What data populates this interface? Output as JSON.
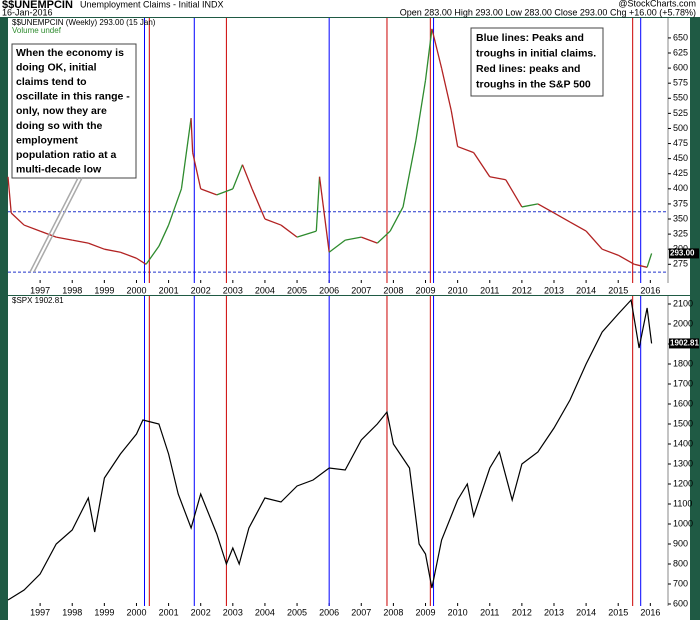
{
  "header": {
    "symbol": "$$UNEMPCIN",
    "name": "Unemployment Claims - Initial INDX",
    "date": "16-Jan-2016",
    "ohlc": "Open 283.00 High 293.00 Low 283.00 Close 293.00 Chg +16.00 (+5.78%)",
    "source": "@StockCharts.com"
  },
  "annotations": {
    "left": [
      "When the economy is",
      "doing OK, initial",
      "claims tend to",
      "oscillate in this range -",
      "only, now they are",
      "doing so with the",
      "employment",
      "population ratio at a",
      "multi-decade low"
    ],
    "right": [
      "Blue lines: Peaks and",
      "troughs in initial claims.",
      "Red lines: peaks and",
      "troughs in the S&P 500"
    ]
  },
  "chart_data": [
    {
      "type": "line",
      "legend": "$$UNEMPCIN (Weekly) 293.00 (15 Jan)",
      "volume": "Volume undef",
      "x": [
        1996.0,
        1996.1,
        1996.5,
        1997.0,
        1997.5,
        1998.0,
        1998.5,
        1999.0,
        1999.5,
        2000.0,
        2000.3,
        2000.7,
        2001.0,
        2001.4,
        2001.7,
        2001.75,
        2002.0,
        2002.5,
        2003.0,
        2003.3,
        2003.6,
        2004.0,
        2004.5,
        2005.0,
        2005.6,
        2005.7,
        2006.0,
        2006.5,
        2007.0,
        2007.5,
        2007.9,
        2008.3,
        2008.7,
        2009.0,
        2009.2,
        2009.5,
        2009.8,
        2010.0,
        2010.5,
        2011.0,
        2011.5,
        2012.0,
        2012.5,
        2013.0,
        2013.5,
        2014.0,
        2014.5,
        2015.0,
        2015.5,
        2015.9,
        2016.04
      ],
      "values": [
        420,
        360,
        340,
        330,
        320,
        315,
        310,
        300,
        295,
        285,
        275,
        305,
        340,
        400,
        517,
        460,
        400,
        390,
        400,
        440,
        400,
        350,
        340,
        320,
        330,
        420,
        295,
        315,
        320,
        310,
        330,
        370,
        480,
        580,
        665,
        600,
        530,
        470,
        460,
        420,
        415,
        370,
        375,
        360,
        345,
        330,
        300,
        290,
        275,
        270,
        293
      ],
      "last_value_label": "293.00",
      "up_color": "#2e8b2e",
      "down_color": "#b22222",
      "hlines": [
        362,
        262
      ],
      "xlim": [
        1996.0,
        2016.55
      ],
      "ylim": [
        244,
        683
      ],
      "xticks": [
        1997,
        1998,
        1999,
        2000,
        2001,
        2002,
        2003,
        2004,
        2005,
        2006,
        2007,
        2008,
        2009,
        2010,
        2011,
        2012,
        2013,
        2014,
        2015,
        2016
      ],
      "yticks": [
        275,
        300,
        325,
        350,
        375,
        400,
        425,
        450,
        475,
        500,
        525,
        550,
        575,
        600,
        625,
        650
      ],
      "markers": [
        {
          "x": 2000.25,
          "color": "#0000ff"
        },
        {
          "x": 2000.4,
          "color": "#cc0000"
        },
        {
          "x": 2001.8,
          "color": "#0000ff"
        },
        {
          "x": 2002.8,
          "color": "#cc0000"
        },
        {
          "x": 2006.0,
          "color": "#0000ff"
        },
        {
          "x": 2007.8,
          "color": "#cc0000"
        },
        {
          "x": 2009.15,
          "color": "#cc0000"
        },
        {
          "x": 2009.25,
          "color": "#0000ff"
        },
        {
          "x": 2015.45,
          "color": "#cc0000"
        },
        {
          "x": 2015.7,
          "color": "#0000ff"
        }
      ]
    },
    {
      "type": "line",
      "legend": "$SPX 1902.81",
      "color": "#000000",
      "x": [
        1996.0,
        1996.5,
        1997.0,
        1997.5,
        1998.0,
        1998.5,
        1998.7,
        1999.0,
        1999.5,
        2000.0,
        2000.2,
        2000.7,
        2001.0,
        2001.3,
        2001.7,
        2002.0,
        2002.5,
        2002.8,
        2003.0,
        2003.2,
        2003.5,
        2004.0,
        2004.5,
        2005.0,
        2005.5,
        2006.0,
        2006.5,
        2007.0,
        2007.5,
        2007.8,
        2008.0,
        2008.5,
        2008.8,
        2009.0,
        2009.2,
        2009.5,
        2010.0,
        2010.3,
        2010.5,
        2011.0,
        2011.3,
        2011.7,
        2012.0,
        2012.5,
        2013.0,
        2013.5,
        2014.0,
        2014.5,
        2015.0,
        2015.4,
        2015.65,
        2015.9,
        2016.04
      ],
      "values": [
        620,
        670,
        750,
        900,
        970,
        1130,
        960,
        1230,
        1350,
        1450,
        1520,
        1500,
        1350,
        1150,
        980,
        1150,
        950,
        800,
        880,
        800,
        980,
        1130,
        1110,
        1190,
        1220,
        1280,
        1270,
        1420,
        1500,
        1560,
        1400,
        1280,
        900,
        850,
        680,
        920,
        1120,
        1200,
        1040,
        1280,
        1360,
        1120,
        1300,
        1360,
        1480,
        1620,
        1800,
        1960,
        2050,
        2120,
        1880,
        2080,
        1902.81
      ],
      "last_value_label": "1902.81",
      "xlim": [
        1996.0,
        2016.55
      ],
      "ylim": [
        590,
        2140
      ],
      "xticks": [
        1997,
        1998,
        1999,
        2000,
        2001,
        2002,
        2003,
        2004,
        2005,
        2006,
        2007,
        2008,
        2009,
        2010,
        2011,
        2012,
        2013,
        2014,
        2015,
        2016
      ],
      "yticks": [
        600,
        700,
        800,
        900,
        1000,
        1100,
        1200,
        1300,
        1400,
        1500,
        1600,
        1700,
        1800,
        1900,
        2000,
        2100
      ],
      "markers": [
        {
          "x": 2000.25,
          "color": "#0000ff"
        },
        {
          "x": 2000.4,
          "color": "#cc0000"
        },
        {
          "x": 2001.8,
          "color": "#0000ff"
        },
        {
          "x": 2002.8,
          "color": "#cc0000"
        },
        {
          "x": 2006.0,
          "color": "#0000ff"
        },
        {
          "x": 2007.8,
          "color": "#cc0000"
        },
        {
          "x": 2009.15,
          "color": "#cc0000"
        },
        {
          "x": 2009.25,
          "color": "#0000ff"
        },
        {
          "x": 2015.45,
          "color": "#cc0000"
        },
        {
          "x": 2015.7,
          "color": "#0000ff"
        }
      ]
    }
  ]
}
